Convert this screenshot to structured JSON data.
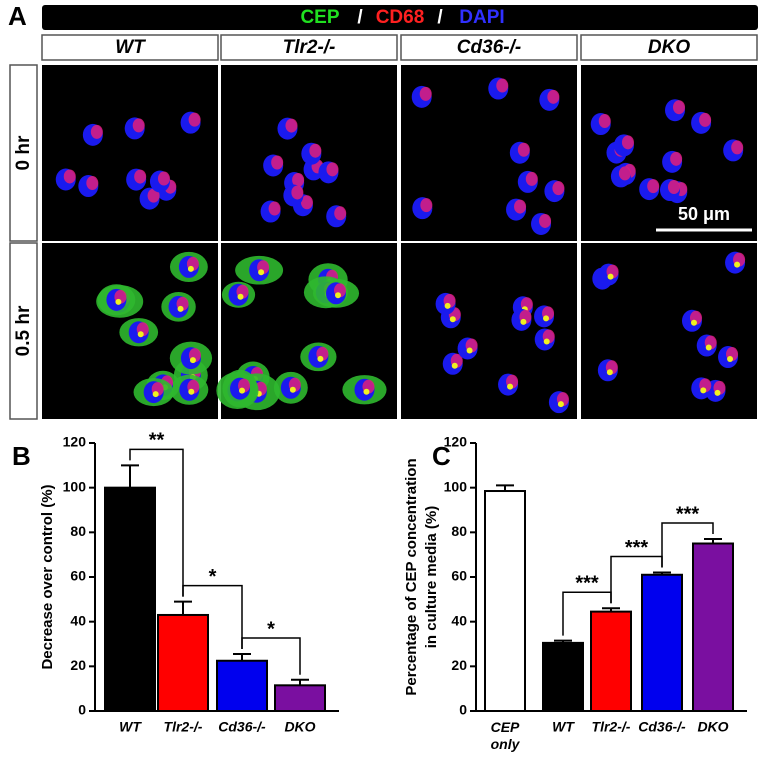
{
  "panel_a": {
    "label": "A",
    "header": [
      "CEP",
      "/",
      "CD68",
      "/",
      "DAPI"
    ],
    "columns": [
      "WT",
      "Tlr2-/-",
      "Cd36-/-",
      "DKO"
    ],
    "rows": [
      "0 hr",
      "0.5 hr"
    ],
    "scale_bar": "50 μm"
  },
  "chart_data": [
    {
      "type": "bar",
      "panel": "B",
      "ylabel": "Decrease over control (%)",
      "categories": [
        "WT",
        "Tlr2-/-",
        "Cd36-/-",
        "DKO"
      ],
      "series": [
        {
          "values": [
            100,
            43,
            22.5,
            11.5
          ],
          "errors": [
            10,
            6,
            3,
            2.5
          ],
          "colors": [
            "#000000",
            "#ff0000",
            "#0000ee",
            "#7a0fa0"
          ]
        }
      ],
      "annotations": [
        "**",
        "*",
        "*"
      ],
      "ylim": [
        0,
        120
      ],
      "yticks": [
        0,
        20,
        40,
        60,
        80,
        100,
        120
      ]
    },
    {
      "type": "bar",
      "panel": "C",
      "ylabel": [
        "Percentage of CEP concentration",
        "in culture media (%)"
      ],
      "categories": [
        "CEP only",
        "WT",
        "Tlr2-/-",
        "Cd36-/-",
        "DKO"
      ],
      "series": [
        {
          "values": [
            98.5,
            30.5,
            44.5,
            61,
            75
          ],
          "errors": [
            2.5,
            1,
            1.5,
            1,
            2
          ],
          "colors": [
            "#ffffff",
            "#000000",
            "#ff0000",
            "#0000ee",
            "#7a0fa0"
          ]
        }
      ],
      "annotations": [
        "***",
        "***",
        "***"
      ],
      "ylim": [
        0,
        120
      ],
      "yticks": [
        0,
        20,
        40,
        60,
        80,
        100,
        120
      ]
    }
  ]
}
